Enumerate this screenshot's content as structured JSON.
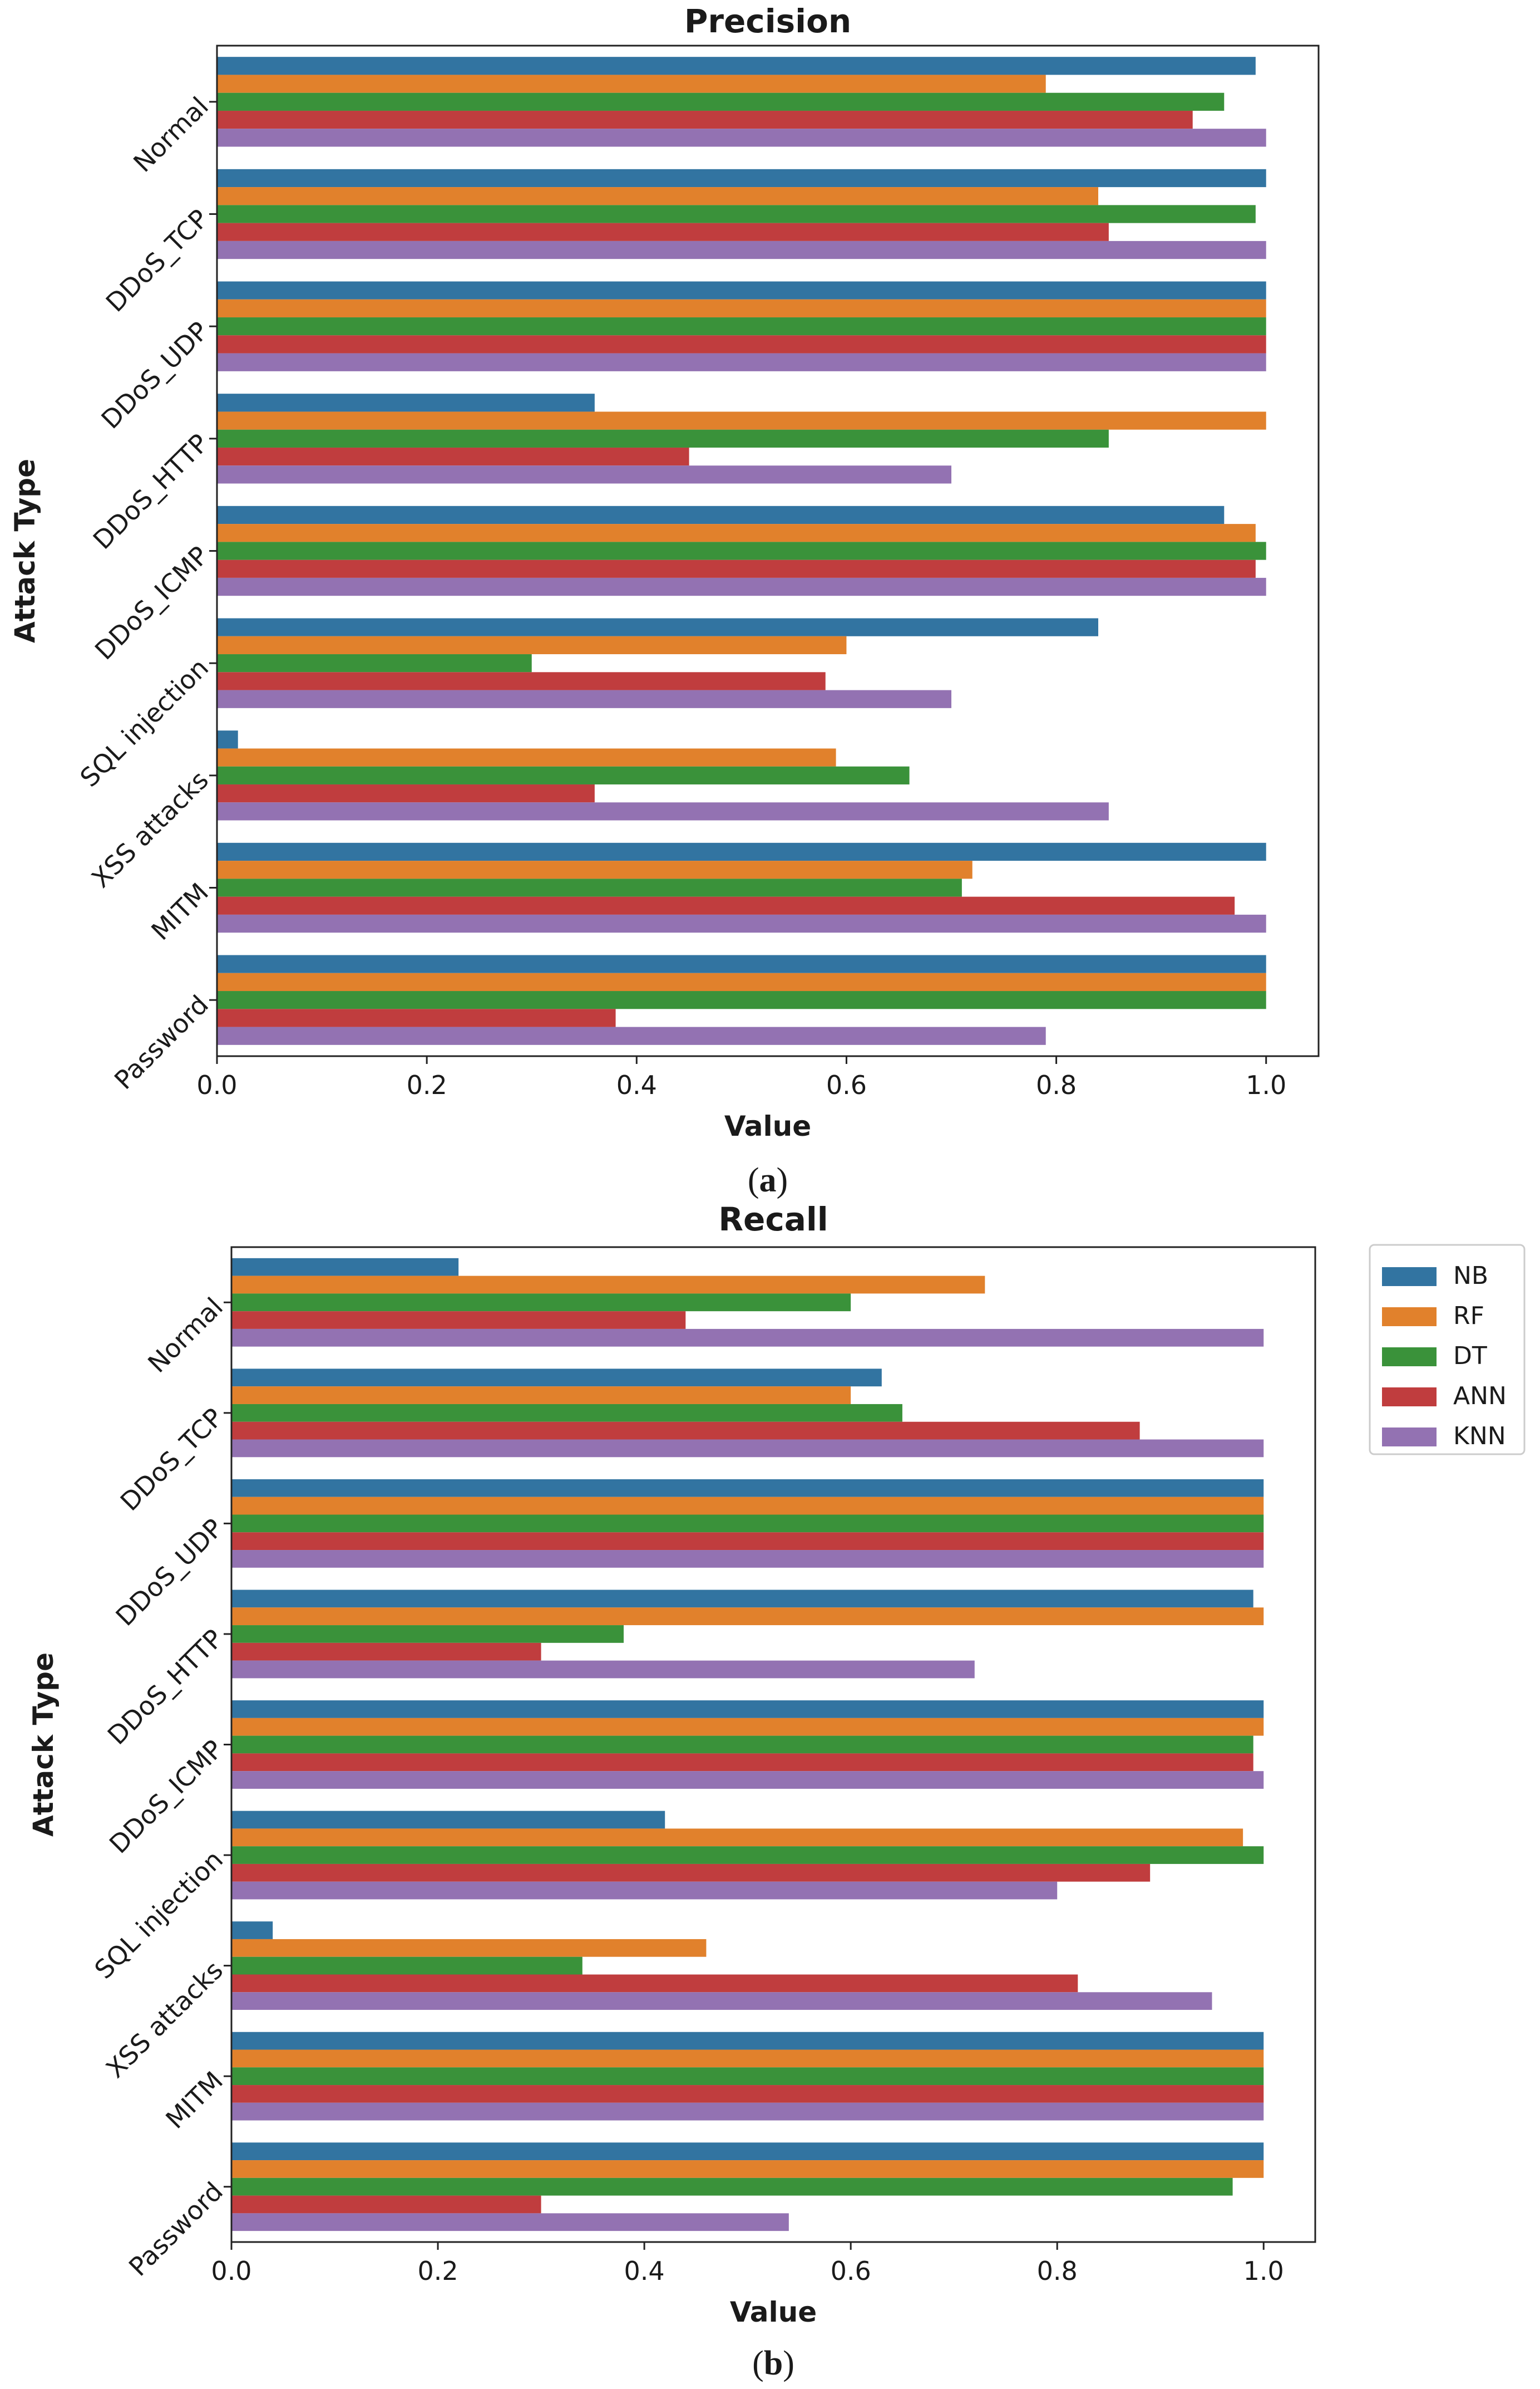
{
  "chart_data": [
    {
      "type": "bar",
      "orientation": "horizontal",
      "title": "Precision",
      "xlabel": "Value",
      "ylabel": "Attack Type",
      "xlim": [
        0,
        1.05
      ],
      "xticks": [
        "0.0",
        "0.2",
        "0.4",
        "0.6",
        "0.8",
        "1.0"
      ],
      "categories": [
        "Normal",
        "DDoS_TCP",
        "DDoS_UDP",
        "DDoS_HTTP",
        "DDoS_ICMP",
        "SQL injection",
        "XSS attacks",
        "MITM",
        "Password"
      ],
      "series": [
        {
          "name": "NB",
          "values": [
            0.99,
            1.0,
            1.0,
            0.36,
            0.96,
            0.84,
            0.02,
            1.0,
            1.0
          ]
        },
        {
          "name": "RF",
          "values": [
            0.79,
            0.84,
            1.0,
            1.0,
            0.99,
            0.6,
            0.59,
            0.72,
            1.0
          ]
        },
        {
          "name": "DT",
          "values": [
            0.96,
            0.99,
            1.0,
            0.85,
            1.0,
            0.3,
            0.66,
            0.71,
            1.0
          ]
        },
        {
          "name": "ANN",
          "values": [
            0.93,
            0.85,
            1.0,
            0.45,
            0.99,
            0.58,
            0.36,
            0.97,
            0.38
          ]
        },
        {
          "name": "KNN",
          "values": [
            1.0,
            1.0,
            1.0,
            0.7,
            1.0,
            0.7,
            0.85,
            1.0,
            0.79
          ]
        }
      ],
      "caption": "(a)"
    },
    {
      "type": "bar",
      "orientation": "horizontal",
      "title": "Recall",
      "xlabel": "Value",
      "ylabel": "Attack Type",
      "xlim": [
        0,
        1.05
      ],
      "xticks": [
        "0.0",
        "0.2",
        "0.4",
        "0.6",
        "0.8",
        "1.0"
      ],
      "categories": [
        "Normal",
        "DDoS_TCP",
        "DDoS_UDP",
        "DDoS_HTTP",
        "DDoS_ICMP",
        "SQL injection",
        "XSS attacks",
        "MITM",
        "Password"
      ],
      "series": [
        {
          "name": "NB",
          "values": [
            0.22,
            0.63,
            1.0,
            0.99,
            1.0,
            0.42,
            0.04,
            1.0,
            1.0
          ]
        },
        {
          "name": "RF",
          "values": [
            0.73,
            0.6,
            1.0,
            1.0,
            1.0,
            0.98,
            0.46,
            1.0,
            1.0
          ]
        },
        {
          "name": "DT",
          "values": [
            0.6,
            0.65,
            1.0,
            0.38,
            0.99,
            1.0,
            0.34,
            1.0,
            0.97
          ]
        },
        {
          "name": "ANN",
          "values": [
            0.44,
            0.88,
            1.0,
            0.3,
            0.99,
            0.89,
            0.82,
            1.0,
            0.3
          ]
        },
        {
          "name": "KNN",
          "values": [
            1.0,
            1.0,
            1.0,
            0.72,
            1.0,
            0.8,
            0.95,
            1.0,
            0.54
          ]
        }
      ],
      "legend": {
        "placement": "outside-top-right",
        "entries": [
          "NB",
          "RF",
          "DT",
          "ANN",
          "KNN"
        ]
      },
      "caption": "(b)"
    }
  ],
  "colors": {
    "NB": "#3274a1",
    "RF": "#e1812c",
    "DT": "#3a923a",
    "ANN": "#c03d3e",
    "KNN": "#9372b2"
  }
}
